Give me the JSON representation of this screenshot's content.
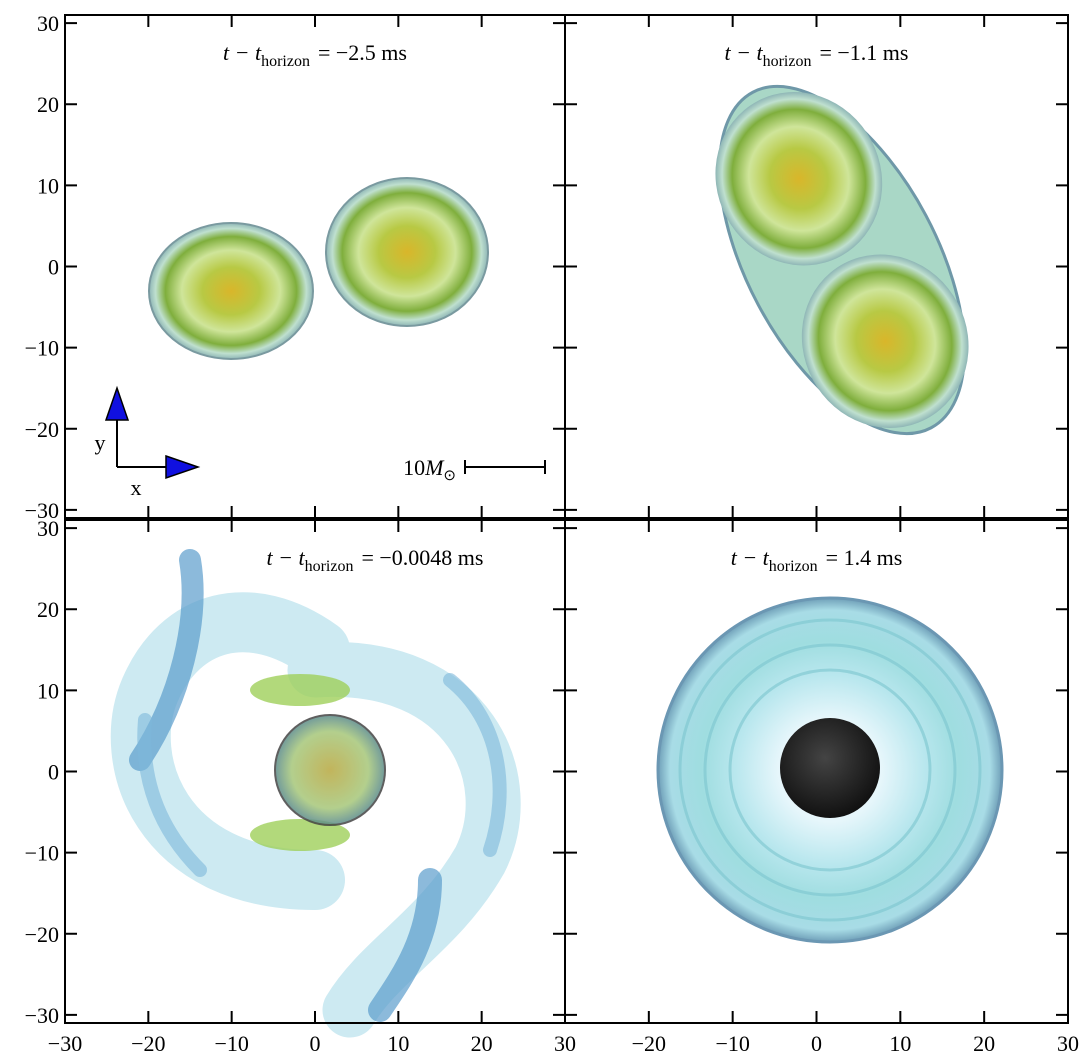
{
  "chart_data": [
    {
      "type": "image",
      "title": {
        "lhs": "t − t",
        "subscript": "horizon",
        "rhs": "= −2.5 ms"
      },
      "xlim": [
        -30,
        30
      ],
      "ylim": [
        -31,
        31
      ],
      "xticks": [
        {
          "value": -30,
          "label": "−30"
        },
        {
          "value": -20,
          "label": "−20"
        },
        {
          "value": -10,
          "label": "−10"
        },
        0,
        10,
        20,
        30
      ],
      "yticks": [
        {
          "value": -30,
          "label": "−30"
        },
        {
          "value": -20,
          "label": "−20"
        },
        {
          "value": -10,
          "label": "−10"
        },
        0,
        10,
        20,
        30
      ],
      "show_xticklabels": false,
      "show_yticklabels": true,
      "axis_arrows": {
        "x": "x",
        "y": "y"
      },
      "scale_bar": {
        "number": "10",
        "symbol": "M",
        "subscript": "⊙"
      }
    },
    {
      "type": "image",
      "title": {
        "lhs": "t − t",
        "subscript": "horizon",
        "rhs": "= −1.1 ms"
      },
      "xlim": [
        -30,
        30
      ],
      "ylim": [
        -31,
        31
      ],
      "xticks": [
        {
          "value": -30,
          "label": "−30"
        },
        {
          "value": -20,
          "label": "−20"
        },
        {
          "value": -10,
          "label": "−10"
        },
        0,
        10,
        20,
        30
      ],
      "yticks": [
        {
          "value": -30,
          "label": "−30"
        },
        {
          "value": -20,
          "label": "−20"
        },
        {
          "value": -10,
          "label": "−10"
        },
        0,
        10,
        20,
        30
      ],
      "show_xticklabels": false,
      "show_yticklabels": false
    },
    {
      "type": "image",
      "title": {
        "lhs": "t − t",
        "subscript": "horizon",
        "rhs": "= −0.0048 ms"
      },
      "xlim": [
        -30,
        30
      ],
      "ylim": [
        -31,
        31
      ],
      "xticks": [
        {
          "value": -30,
          "label": "−30"
        },
        {
          "value": -20,
          "label": "−20"
        },
        {
          "value": -10,
          "label": "−10"
        },
        0,
        10,
        20,
        30
      ],
      "yticks": [
        {
          "value": -30,
          "label": "−30"
        },
        {
          "value": -20,
          "label": "−20"
        },
        {
          "value": -10,
          "label": "−10"
        },
        0,
        10,
        20,
        30
      ],
      "show_xticklabels": true,
      "show_yticklabels": true
    },
    {
      "type": "image",
      "title": {
        "lhs": "t − t",
        "subscript": "horizon",
        "rhs": "= 1.4 ms"
      },
      "xlim": [
        -30,
        30
      ],
      "ylim": [
        -31,
        31
      ],
      "xticks": [
        {
          "value": -20,
          "label": "−20"
        },
        {
          "value": -10,
          "label": "−10"
        },
        0,
        10,
        20,
        30
      ],
      "yticks": [
        {
          "value": -30,
          "label": "−30"
        },
        {
          "value": -20,
          "label": "−20"
        },
        {
          "value": -10,
          "label": "−10"
        },
        0,
        10,
        20,
        30
      ],
      "show_xticklabels": true,
      "show_yticklabels": false
    }
  ]
}
